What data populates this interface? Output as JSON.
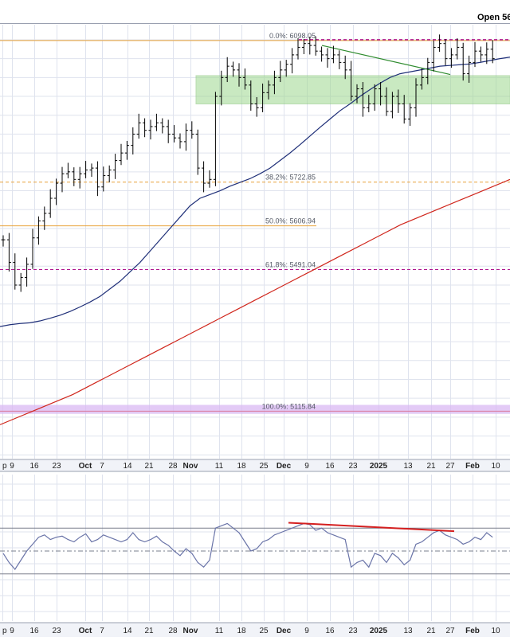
{
  "header": {
    "open_label": "Open 56"
  },
  "colors": {
    "price_bar": "#000000",
    "ma_short": "#1f2f78",
    "ma_long": "#d0261c",
    "fib_line": "#e8a23a",
    "fib_extreme": "#b0188f",
    "support_zone": "#9ed88f",
    "trendline": "#2e8b2e",
    "rsi_line": "#6a74a8",
    "divergence_line": "#d41f1f",
    "low_zone": "#d9b8f3",
    "grid": "#dfe3ee",
    "panel_bg": "#f1f3f8"
  },
  "chart_data": [
    {
      "type": "line",
      "panel": "price",
      "y_scale": "linear",
      "ylim": [
        4990,
        6140
      ],
      "grid": true,
      "x_tick_labels": [
        "p",
        "9",
        "16",
        "23",
        "Oct",
        "7",
        "14",
        "21",
        "28",
        "Nov",
        "11",
        "18",
        "25",
        "Dec",
        "9",
        "16",
        "23",
        "2025",
        "13",
        "21",
        "27",
        "Feb",
        "10"
      ],
      "x_ticks_bold": [
        "Oct",
        "Nov",
        "Dec",
        "2025",
        "Feb"
      ],
      "fib_levels": [
        {
          "label": "0.0%: 6098.05",
          "value": 6098.05
        },
        {
          "label": "38.2%: 5722.85",
          "value": 5722.85
        },
        {
          "label": "50.0%: 5606.94",
          "value": 5606.94
        },
        {
          "label": "61.8%: 5491.04",
          "value": 5491.04
        },
        {
          "label": "100.0%: 5115.84",
          "value": 5115.84
        }
      ],
      "support_zone": {
        "from": 5930,
        "to": 6005
      },
      "low_zone": {
        "from": 5113,
        "to": 5124
      },
      "series": [
        {
          "style": "ohlc",
          "closes": [
            5570,
            5510,
            5450,
            5470,
            5505,
            5575,
            5620,
            5640,
            5680,
            5720,
            5745,
            5750,
            5730,
            5745,
            5755,
            5760,
            5710,
            5740,
            5755,
            5780,
            5800,
            5820,
            5850,
            5880,
            5860,
            5870,
            5880,
            5870,
            5850,
            5840,
            5830,
            5860,
            5850,
            5760,
            5720,
            5730,
            5950,
            6000,
            6030,
            6020,
            6000,
            5980,
            5930,
            5920,
            5960,
            5980,
            6000,
            6020,
            6035,
            6060,
            6080,
            6090,
            6085,
            6070,
            6060,
            6050,
            6060,
            6040,
            6020,
            5950,
            5970,
            5920,
            5930,
            5970,
            5950,
            5910,
            5950,
            5930,
            5890,
            5920,
            5980,
            6000,
            6040,
            6080,
            6090,
            6050,
            6060,
            6080,
            6010,
            6040,
            6070,
            6060,
            6075,
            6050
          ]
        },
        {
          "style": "line",
          "values": [
            5340,
            5345,
            5348,
            5350,
            5355,
            5362,
            5370,
            5380,
            5392,
            5405,
            5420,
            5440,
            5460,
            5485,
            5510,
            5540,
            5570,
            5600,
            5630,
            5660,
            5680,
            5690,
            5700,
            5712,
            5722,
            5732,
            5745,
            5760,
            5780,
            5800,
            5822,
            5845,
            5868,
            5890,
            5912,
            5930,
            5950,
            5968,
            5985,
            6000,
            6010,
            6015,
            6020,
            6025,
            6030,
            6032,
            6034,
            6036,
            6040,
            6045,
            6050,
            6054
          ]
        },
        {
          "style": "line",
          "values": [
            5080,
            5100,
            5120,
            5140,
            5160,
            5185,
            5210,
            5235,
            5260,
            5285,
            5310,
            5335,
            5360,
            5385,
            5410,
            5435,
            5460,
            5485,
            5510,
            5535,
            5560,
            5585,
            5610,
            5630,
            5650,
            5670,
            5690,
            5710,
            5730
          ]
        }
      ]
    },
    {
      "type": "line",
      "panel": "indicator",
      "ylim": [
        0,
        100
      ],
      "reference_lines": [
        30,
        50,
        70
      ],
      "grid": true,
      "x_tick_labels": [
        "p",
        "9",
        "16",
        "23",
        "Oct",
        "7",
        "14",
        "21",
        "28",
        "Nov",
        "11",
        "18",
        "25",
        "Dec",
        "9",
        "16",
        "23",
        "2025",
        "13",
        "21",
        "27",
        "Feb",
        "10"
      ],
      "series": [
        {
          "values": [
            48,
            40,
            34,
            42,
            50,
            56,
            62,
            64,
            60,
            62,
            63,
            60,
            58,
            62,
            65,
            58,
            60,
            64,
            62,
            60,
            58,
            60,
            66,
            60,
            58,
            60,
            63,
            58,
            55,
            50,
            46,
            52,
            48,
            40,
            36,
            42,
            70,
            72,
            74,
            70,
            66,
            58,
            50,
            52,
            58,
            60,
            64,
            66,
            68,
            70,
            72,
            74,
            73,
            68,
            70,
            66,
            64,
            62,
            60,
            36,
            40,
            42,
            36,
            48,
            46,
            40,
            48,
            44,
            38,
            42,
            56,
            58,
            62,
            66,
            68,
            64,
            62,
            60,
            56,
            58,
            62,
            60,
            66,
            62
          ]
        }
      ]
    }
  ]
}
